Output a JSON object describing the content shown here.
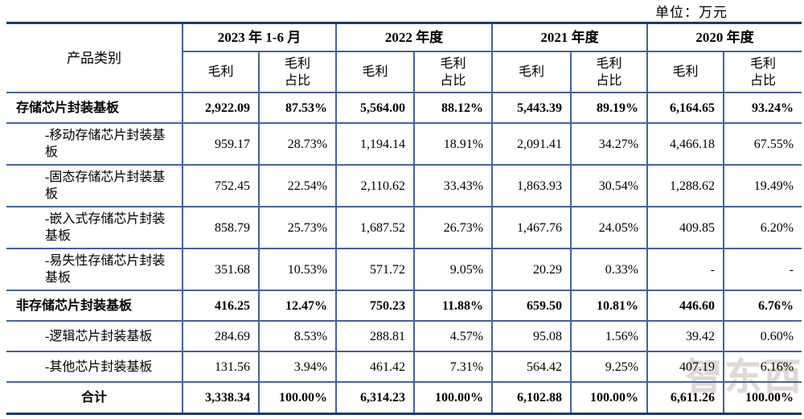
{
  "unit_label": "单位：万元",
  "watermark": "智东西",
  "table": {
    "category_header": "产品类别",
    "periods": [
      {
        "label": "2023 年 1-6 月"
      },
      {
        "label": "2022 年度"
      },
      {
        "label": "2021 年度"
      },
      {
        "label": "2020 年度"
      }
    ],
    "sub_headers": {
      "profit": "毛利",
      "ratio": "毛利\n占比"
    },
    "rows": [
      {
        "label": "存储芯片封装基板",
        "style": "bold",
        "values": [
          "2,922.09",
          "87.53%",
          "5,564.00",
          "88.12%",
          "5,443.39",
          "89.19%",
          "6,164.65",
          "93.24%"
        ]
      },
      {
        "label": "-移动存储芯片封装基板",
        "style": "sub",
        "values": [
          "959.17",
          "28.73%",
          "1,194.14",
          "18.91%",
          "2,091.41",
          "34.27%",
          "4,466.18",
          "67.55%"
        ]
      },
      {
        "label": "-固态存储芯片封装基板",
        "style": "sub",
        "values": [
          "752.45",
          "22.54%",
          "2,110.62",
          "33.43%",
          "1,863.93",
          "30.54%",
          "1,288.62",
          "19.49%"
        ]
      },
      {
        "label": "-嵌入式存储芯片封装基板",
        "style": "sub",
        "values": [
          "858.79",
          "25.73%",
          "1,687.52",
          "26.73%",
          "1,467.76",
          "24.05%",
          "409.85",
          "6.20%"
        ]
      },
      {
        "label": "-易失性存储芯片封装基板",
        "style": "sub",
        "values": [
          "351.68",
          "10.53%",
          "571.72",
          "9.05%",
          "20.29",
          "0.33%",
          "-",
          "-"
        ]
      },
      {
        "label": "非存储芯片封装基板",
        "style": "bold",
        "values": [
          "416.25",
          "12.47%",
          "750.23",
          "11.88%",
          "659.50",
          "10.81%",
          "446.60",
          "6.76%"
        ]
      },
      {
        "label": "-逻辑芯片封装基板",
        "style": "sub",
        "values": [
          "284.69",
          "8.53%",
          "288.81",
          "4.57%",
          "95.08",
          "1.56%",
          "39.42",
          "0.60%"
        ]
      },
      {
        "label": "-其他芯片封装基板",
        "style": "sub",
        "values": [
          "131.56",
          "3.94%",
          "461.42",
          "7.31%",
          "564.42",
          "9.25%",
          "407.19",
          "6.16%"
        ]
      },
      {
        "label": "合计",
        "style": "total",
        "values": [
          "3,338.34",
          "100.00%",
          "6,314.23",
          "100.00%",
          "6,102.88",
          "100.00%",
          "6,611.26",
          "100.00%"
        ]
      }
    ]
  }
}
